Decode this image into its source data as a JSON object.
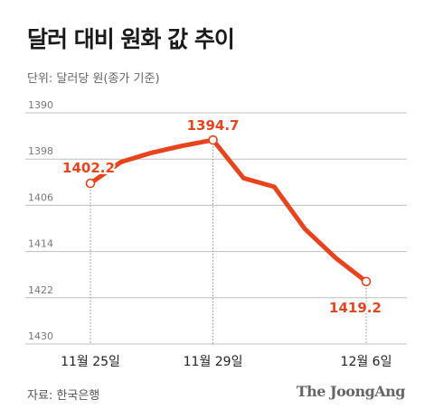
{
  "header": {
    "title": "달러 대비 원화 값 추이",
    "unit": "단위: 달러당 원(종가 기준)"
  },
  "footer": {
    "source": "자료: 한국은행",
    "brand": "The JoongAng"
  },
  "colors": {
    "line": "#e8431c",
    "grid": "#bfbfbf",
    "guide": "#888888"
  },
  "chart_data": {
    "type": "line",
    "title": "달러 대비 원화 값 추이",
    "ylabel": "단위: 달러당 원(종가 기준)",
    "xlabel": "",
    "y_inverted": true,
    "ylim": [
      1390,
      1430
    ],
    "yticks": [
      "1390",
      "1398",
      "1406",
      "1414",
      "1422",
      "1430"
    ],
    "yticks_values": [
      1390,
      1398,
      1406,
      1414,
      1422,
      1430
    ],
    "x_labels": [
      "11월 25일",
      "11월 29일",
      "12월 6일"
    ],
    "grid": true,
    "points": [
      {
        "date": "11월 25일",
        "value": 1402.2,
        "label": "1402.2"
      },
      {
        "date": "11월 26일",
        "value": 1398.5
      },
      {
        "date": "11월 27일",
        "value": 1396.9
      },
      {
        "date": "11월 28일",
        "value": 1395.7
      },
      {
        "date": "11월 29일",
        "value": 1394.7,
        "label": "1394.7"
      },
      {
        "date": "12월 2일",
        "value": 1401.3
      },
      {
        "date": "12월 3일",
        "value": 1402.8
      },
      {
        "date": "12월 4일",
        "value": 1410.1
      },
      {
        "date": "12월 5일",
        "value": 1415.1
      },
      {
        "date": "12월 6일",
        "value": 1419.2,
        "label": "1419.2"
      }
    ]
  }
}
